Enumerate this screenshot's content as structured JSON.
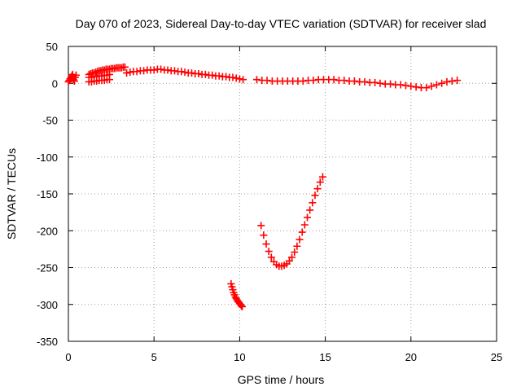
{
  "chart_data": {
    "type": "scatter",
    "title": "Day 070 of 2023, Sidereal Day-to-day VTEC variation (SDTVAR) for receiver slad",
    "xlabel": "GPS time / hours",
    "ylabel": "SDTVAR / TECUs",
    "xlim": [
      0,
      25
    ],
    "ylim": [
      -350,
      50
    ],
    "xticks": [
      0,
      5,
      10,
      15,
      20,
      25
    ],
    "yticks": [
      50,
      0,
      -50,
      -100,
      -150,
      -200,
      -250,
      -300,
      -350
    ],
    "grid": true,
    "legend": "none",
    "marker": "plus",
    "color": "#ff0000",
    "series": [
      {
        "x": [
          0.0,
          0.05,
          0.1,
          0.15,
          0.2,
          0.25,
          0.3,
          0.35,
          0.4,
          0.45,
          1.2,
          1.3,
          1.4,
          1.5,
          1.6,
          1.7,
          1.8,
          1.9,
          2.0,
          2.1,
          2.2,
          2.3,
          2.4,
          2.5,
          2.6,
          2.7,
          2.8,
          2.9,
          3.0,
          3.1,
          3.2,
          3.3,
          1.2,
          1.35,
          1.5,
          1.65,
          1.8,
          1.95,
          2.1,
          2.25,
          2.4,
          1.2,
          1.35,
          1.5,
          1.65,
          1.8,
          1.95,
          2.1,
          2.25,
          2.4,
          3.4,
          3.6,
          3.8,
          4.0,
          4.2,
          4.4,
          4.6,
          4.8,
          5.0,
          5.2,
          5.4,
          5.6,
          5.8,
          6.0,
          6.2,
          6.4,
          6.6,
          6.8,
          7.0,
          7.2,
          7.4,
          7.6,
          7.8,
          8.0,
          8.2,
          8.4,
          8.6,
          8.8,
          9.0,
          9.2,
          9.4,
          9.6,
          9.8,
          10.0,
          10.2,
          11.0,
          11.3,
          11.6,
          11.9,
          12.2,
          12.5,
          12.8,
          13.1,
          13.4,
          13.7,
          14.0,
          14.3,
          14.6,
          14.9,
          15.2,
          15.5,
          15.8,
          16.1,
          16.4,
          16.7,
          17.0,
          17.3,
          17.6,
          17.9,
          18.2,
          18.5,
          18.8,
          19.1,
          19.4,
          19.7,
          20.0,
          20.3,
          20.6,
          20.9,
          21.2,
          21.5,
          21.8,
          22.1,
          22.4,
          22.7
        ],
        "y": [
          2,
          4,
          6,
          8,
          10,
          12,
          5,
          3,
          8,
          11,
          12,
          13,
          14,
          14,
          15,
          16,
          17,
          17,
          18,
          18,
          19,
          19,
          19,
          20,
          20,
          20,
          21,
          21,
          21,
          21,
          22,
          22,
          8,
          8,
          9,
          9,
          10,
          10,
          11,
          11,
          12,
          2,
          2,
          3,
          3,
          4,
          4,
          4,
          5,
          5,
          14,
          15,
          16,
          16,
          17,
          17,
          18,
          18,
          18,
          19,
          19,
          18,
          18,
          17,
          17,
          16,
          16,
          15,
          14,
          14,
          13,
          13,
          12,
          12,
          11,
          11,
          10,
          10,
          9,
          9,
          8,
          8,
          7,
          6,
          5,
          5,
          4,
          4,
          3,
          3,
          3,
          3,
          3,
          3,
          3,
          4,
          4,
          5,
          5,
          5,
          5,
          4,
          4,
          3,
          3,
          2,
          2,
          1,
          1,
          0,
          -1,
          -1,
          -2,
          -2,
          -3,
          -4,
          -5,
          -6,
          -6,
          -4,
          -2,
          0,
          2,
          3,
          4
        ]
      },
      {
        "x": [
          9.5,
          9.55,
          9.6,
          9.65,
          9.7,
          9.75,
          9.8,
          9.85,
          9.9,
          9.95,
          10.0,
          10.05,
          10.1,
          10.15
        ],
        "y": [
          -272,
          -276,
          -280,
          -284,
          -287,
          -290,
          -292,
          -294,
          -296,
          -297,
          -299,
          -300,
          -302,
          -303
        ]
      },
      {
        "x": [
          11.25,
          11.4,
          11.55,
          11.7,
          11.85,
          12.0,
          12.15,
          12.3,
          12.45,
          12.6,
          12.75,
          12.9,
          13.05,
          13.2,
          13.35,
          13.5,
          13.65,
          13.8,
          13.95,
          14.1,
          14.25,
          14.4,
          14.55,
          14.7,
          14.85
        ],
        "y": [
          -193,
          -206,
          -218,
          -228,
          -236,
          -242,
          -246,
          -248,
          -248,
          -247,
          -245,
          -241,
          -236,
          -229,
          -221,
          -212,
          -202,
          -192,
          -182,
          -172,
          -162,
          -152,
          -143,
          -134,
          -127
        ]
      }
    ]
  }
}
